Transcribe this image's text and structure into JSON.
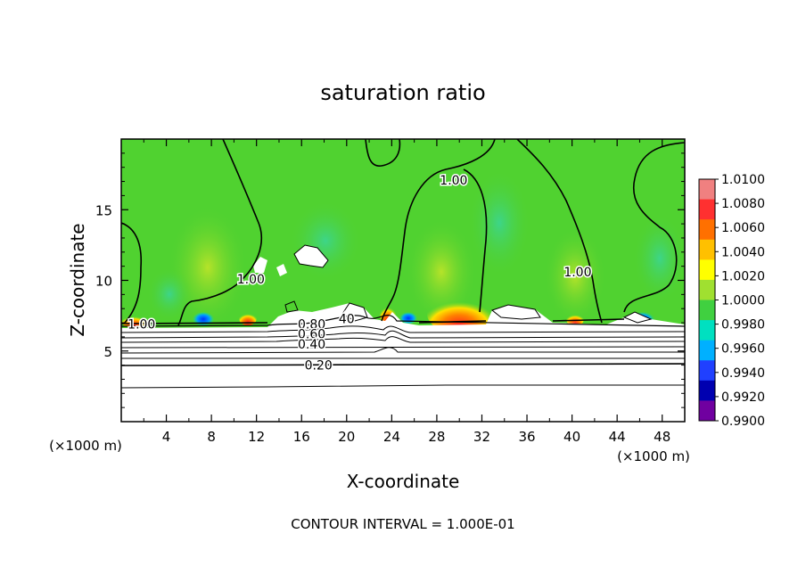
{
  "chart_data": {
    "type": "heatmap",
    "title": "saturation ratio",
    "xlabel": "X-coordinate",
    "ylabel": "Z-coordinate",
    "x_unit": "(×1000 m)",
    "z_unit": "(×1000 m)",
    "xlim": [
      0,
      50
    ],
    "ylim": [
      0,
      20
    ],
    "x_ticks": [
      4,
      8,
      12,
      16,
      20,
      24,
      28,
      32,
      36,
      40,
      44,
      48
    ],
    "y_ticks": [
      5,
      10,
      15
    ],
    "footer": "CONTOUR INTERVAL = 1.000E-01",
    "colorbar": {
      "min": 0.99,
      "max": 1.01,
      "labels": [
        "1.0100",
        "1.0080",
        "1.0060",
        "1.0040",
        "1.0020",
        "1.0000",
        "0.9980",
        "0.9960",
        "0.9940",
        "0.9920",
        "0.9900"
      ],
      "colors": [
        "#f08080",
        "#ff3030",
        "#ff7000",
        "#ffc000",
        "#ffff00",
        "#a0e030",
        "#40d040",
        "#00e0c0",
        "#00b0ff",
        "#2040ff",
        "#0000b0",
        "#7000a0"
      ]
    },
    "contour_labels": [
      {
        "text": "1.00",
        "x": 11.5,
        "z": 10.1
      },
      {
        "text": "1.00",
        "x": 1.8,
        "z": 6.9
      },
      {
        "text": "1.00",
        "x": 29.5,
        "z": 17.1
      },
      {
        "text": "1.00",
        "x": 40.5,
        "z": 10.6
      },
      {
        "text": "0.80",
        "x": 16.9,
        "z": 6.9
      },
      {
        "text": "0.60",
        "x": 16.9,
        "z": 6.2
      },
      {
        "text": "0.40",
        "x": 16.9,
        "z": 5.5
      },
      {
        "text": "0.20",
        "x": 17.5,
        "z": 4.0
      },
      {
        "text": "40",
        "x": 20.0,
        "z": 7.3
      }
    ],
    "contour_levels_below": [
      {
        "level": 0.9,
        "z": 6.9
      },
      {
        "level": 0.8,
        "z": 6.5
      },
      {
        "level": 0.7,
        "z": 6.1
      },
      {
        "level": 0.6,
        "z": 5.8
      },
      {
        "level": 0.5,
        "z": 5.4
      },
      {
        "level": 0.4,
        "z": 5.0
      },
      {
        "level": 0.3,
        "z": 4.5
      },
      {
        "level": 0.2,
        "z": 4.0
      },
      {
        "level": 0.1,
        "z": 2.5
      }
    ]
  }
}
